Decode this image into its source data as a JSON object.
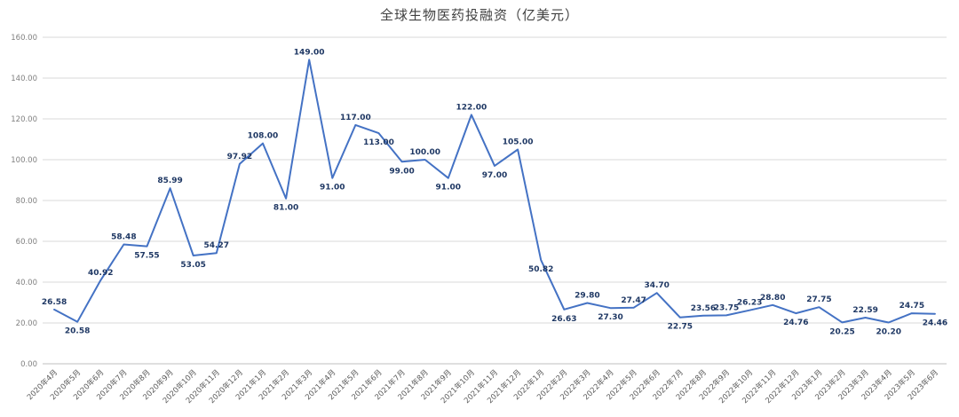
{
  "chart_data": {
    "type": "line",
    "title": "全球生物医药投融资（亿美元）",
    "categories": [
      "2020年4月",
      "2020年5月",
      "2020年6月",
      "2020年7月",
      "2020年8月",
      "2020年9月",
      "2020年10月",
      "2020年11月",
      "2020年12月",
      "2021年1月",
      "2021年2月",
      "2021年3月",
      "2021年4月",
      "2021年5月",
      "2021年6月",
      "2021年7月",
      "2021年8月",
      "2021年9月",
      "2021年10月",
      "2021年11月",
      "2021年12月",
      "2022年1月",
      "2022年2月",
      "2022年3月",
      "2022年4月",
      "2022年5月",
      "2022年6月",
      "2022年7月",
      "2022年8月",
      "2022年9月",
      "2022年10月",
      "2022年11月",
      "2022年12月",
      "2023年1月",
      "2023年2月",
      "2023年3月",
      "2023年4月",
      "2023年5月",
      "2023年6月"
    ],
    "values": [
      26.58,
      20.58,
      40.92,
      58.48,
      57.55,
      85.99,
      53.05,
      54.27,
      97.92,
      108.0,
      81.0,
      149.0,
      91.0,
      117.0,
      113.0,
      99.0,
      100.0,
      91.0,
      122.0,
      97.0,
      105.0,
      50.82,
      26.63,
      29.8,
      27.3,
      27.47,
      34.7,
      22.75,
      23.56,
      23.75,
      26.23,
      28.8,
      24.76,
      27.75,
      20.25,
      22.59,
      20.2,
      24.75,
      24.46
    ],
    "ylim": [
      0,
      160
    ],
    "y_tick_step": 20,
    "y_tick_format_decimals": 2,
    "grid": "horizontal",
    "legend": "none",
    "data_labels": "on",
    "colors": {
      "line": "#4472C4",
      "data_label": "#1F3864",
      "y_axis_text": "#808080",
      "x_axis_text": "#595959",
      "gridline": "#D9D9D9",
      "axis_line": "#BFBFBF"
    }
  }
}
